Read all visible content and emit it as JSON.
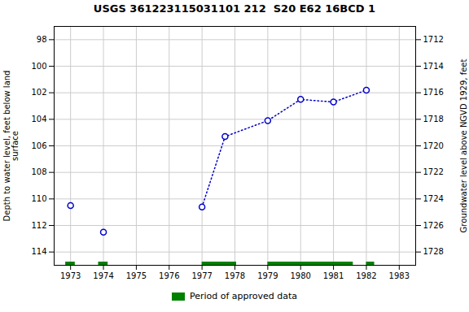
{
  "chart_data": {
    "type": "line",
    "title": "USGS 361223115031101 212  S20 E62 16BCD 1",
    "ylabel": "Depth to water level, feet below land\nsurface",
    "y2label": "Groundwater level above NGVD 1929, feet",
    "x": [
      1973.0,
      1974.0,
      1977.0,
      1977.7,
      1979.0,
      1980.0,
      1981.0,
      1982.0
    ],
    "xlim": [
      1972.5,
      1983.5
    ],
    "xticks": [
      1973,
      1974,
      1975,
      1976,
      1977,
      1978,
      1979,
      1980,
      1981,
      1982,
      1983
    ],
    "ylim": [
      115,
      97
    ],
    "yticks": [
      98,
      100,
      102,
      104,
      106,
      108,
      110,
      112,
      114
    ],
    "y2lim": [
      1729,
      1711
    ],
    "y2ticks": [
      1712,
      1714,
      1716,
      1718,
      1720,
      1722,
      1724,
      1726,
      1728
    ],
    "grid": true,
    "legend": "bottom",
    "series": [
      {
        "type": "scatter",
        "color": "#0000cc",
        "marker": "o",
        "values": [
          110.5,
          112.5,
          null,
          null,
          null,
          null,
          null,
          null
        ]
      },
      {
        "type": "line",
        "color": "#0000cc",
        "marker": "o",
        "line_style": "dotted",
        "values": [
          null,
          null,
          110.6,
          105.3,
          104.1,
          102.5,
          102.7,
          101.8
        ]
      }
    ],
    "approved_periods": {
      "name": "Period of approved data",
      "color": "#008000",
      "start": [
        1972.85,
        1973.85,
        1977.0,
        1979.0,
        1982.0
      ],
      "end": [
        1973.14,
        1974.14,
        1978.05,
        1981.6,
        1982.25
      ]
    }
  }
}
